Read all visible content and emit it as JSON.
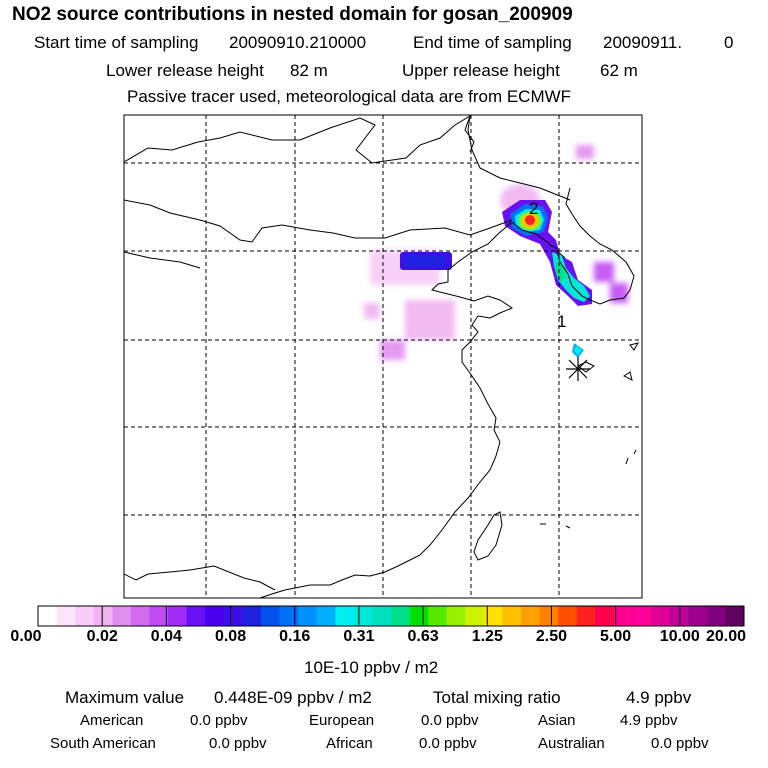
{
  "title": "NO2 source contributions in nested domain for gosan_200909",
  "sampling": {
    "start_label": "Start time of sampling",
    "start_value": "20090910.210000",
    "end_label": "End time of sampling",
    "end_value": "20090911.",
    "end_value_tail": "0"
  },
  "release": {
    "lower_label": "Lower release height",
    "lower_value": "82 m",
    "upper_label": "Upper release height",
    "upper_value": "62 m"
  },
  "note": "Passive tracer used, meteorological data are from ECMWF",
  "map": {
    "markers": [
      {
        "label": "2",
        "lon": 126.6,
        "lat": 41.3
      },
      {
        "label": "1",
        "lon": 127.0,
        "lat": 35.8
      }
    ],
    "receptor": {
      "name": "gosan",
      "symbol": "asterisk"
    },
    "grid_lines": "dashed"
  },
  "colorbar": {
    "colors": [
      "#ffffff",
      "#fbe6fb",
      "#f7ccf7",
      "#f0b3f0",
      "#e28ef0",
      "#d36cf2",
      "#c04cf4",
      "#a12cf6",
      "#6a10f4",
      "#4a00ee",
      "#3a10e6",
      "#2020e0",
      "#0050ee",
      "#0070f6",
      "#0090fb",
      "#00b0ff",
      "#00f0f0",
      "#00e8d8",
      "#00e0c0",
      "#00e08a",
      "#00e000",
      "#55ea00",
      "#99f000",
      "#ccf400",
      "#ffe000",
      "#ffc000",
      "#ffa000",
      "#ff8000",
      "#ff5000",
      "#ff2020",
      "#ff0050",
      "#ff0090",
      "#ff0099",
      "#e00099",
      "#c00099",
      "#a00090",
      "#800080",
      "#600060"
    ],
    "tick_labels": [
      "0.00",
      "0.02",
      "0.04",
      "0.08",
      "0.16",
      "0.31",
      "0.63",
      "1.25",
      "2.50",
      "5.00",
      "10.00",
      "20.00"
    ],
    "unit": "10E-10 ppbv / m2"
  },
  "summary": {
    "max_label": "Maximum value",
    "max_value": "0.448E-09 ppbv / m2",
    "total_label": "Total mixing ratio",
    "total_value": "4.9 ppbv",
    "regions": [
      {
        "name": "American",
        "value": "0.0 ppbv"
      },
      {
        "name": "European",
        "value": "0.0 ppbv"
      },
      {
        "name": "Asian",
        "value": "4.9 ppbv"
      },
      {
        "name": "South American",
        "value": "0.0 ppbv"
      },
      {
        "name": "African",
        "value": "0.0 ppbv"
      },
      {
        "name": "Australian",
        "value": "0.0 ppbv"
      }
    ]
  }
}
